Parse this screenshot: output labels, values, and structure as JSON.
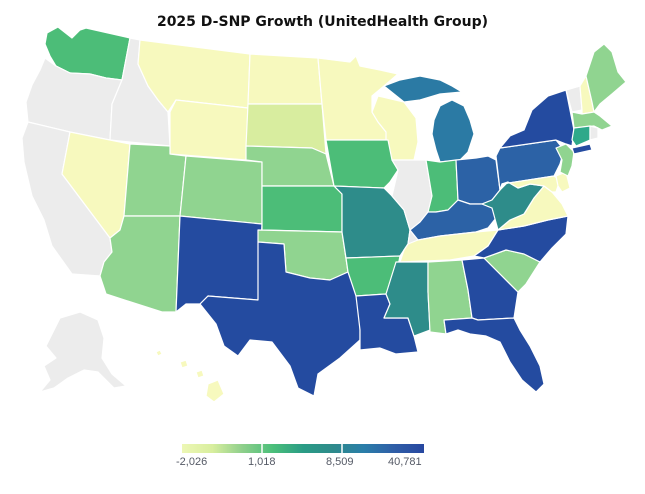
{
  "title": "2025 D-SNP Growth (UnitedHealth Group)",
  "legend": {
    "labels": [
      "-2,026",
      "1,018",
      "8,509",
      "40,781"
    ],
    "colors": [
      "#edf7b5",
      "#d8ee9e",
      "#8ecf8b",
      "#4bbf7a",
      "#2a9c85",
      "#2e8a8b",
      "#2a7ea9",
      "#2f5ea7",
      "#2747a0"
    ]
  },
  "colors": {
    "no_data": "#ececec",
    "c1": "#f7f9be",
    "c2": "#d8ed9f",
    "c3": "#90d490",
    "c4": "#4cbd78",
    "c5": "#2ea98a",
    "c6": "#2e8c8a",
    "c7": "#2b7aa4",
    "c8": "#2c62a6",
    "c9": "#244ba0"
  },
  "states": [
    {
      "id": "WA",
      "tier": "c4"
    },
    {
      "id": "OR",
      "tier": "no_data"
    },
    {
      "id": "CA",
      "tier": "no_data"
    },
    {
      "id": "ID",
      "tier": "no_data"
    },
    {
      "id": "NV",
      "tier": "c1"
    },
    {
      "id": "MT",
      "tier": "c1"
    },
    {
      "id": "WY",
      "tier": "c1"
    },
    {
      "id": "UT",
      "tier": "c3"
    },
    {
      "id": "AZ",
      "tier": "c3"
    },
    {
      "id": "CO",
      "tier": "c3"
    },
    {
      "id": "NM",
      "tier": "c9"
    },
    {
      "id": "ND",
      "tier": "c1"
    },
    {
      "id": "SD",
      "tier": "c2"
    },
    {
      "id": "NE",
      "tier": "c3"
    },
    {
      "id": "KS",
      "tier": "c4"
    },
    {
      "id": "OK",
      "tier": "c3"
    },
    {
      "id": "TX",
      "tier": "c9"
    },
    {
      "id": "MN",
      "tier": "c1"
    },
    {
      "id": "IA",
      "tier": "c4"
    },
    {
      "id": "MO",
      "tier": "c6"
    },
    {
      "id": "AR",
      "tier": "c4"
    },
    {
      "id": "LA",
      "tier": "c9"
    },
    {
      "id": "WI",
      "tier": "c1"
    },
    {
      "id": "IL",
      "tier": "no_data"
    },
    {
      "id": "MI",
      "tier": "c7"
    },
    {
      "id": "IN",
      "tier": "c4"
    },
    {
      "id": "OH",
      "tier": "c8"
    },
    {
      "id": "KY",
      "tier": "c8"
    },
    {
      "id": "TN",
      "tier": "c1"
    },
    {
      "id": "MS",
      "tier": "c6"
    },
    {
      "id": "AL",
      "tier": "c3"
    },
    {
      "id": "GA",
      "tier": "c9"
    },
    {
      "id": "FL",
      "tier": "c9"
    },
    {
      "id": "SC",
      "tier": "c3"
    },
    {
      "id": "NC",
      "tier": "c9"
    },
    {
      "id": "VA",
      "tier": "c1"
    },
    {
      "id": "WV",
      "tier": "c6"
    },
    {
      "id": "PA",
      "tier": "c8"
    },
    {
      "id": "NY",
      "tier": "c9"
    },
    {
      "id": "VT",
      "tier": "no_data"
    },
    {
      "id": "NH",
      "tier": "c1"
    },
    {
      "id": "ME",
      "tier": "c3"
    },
    {
      "id": "MA",
      "tier": "c3"
    },
    {
      "id": "CT",
      "tier": "c5"
    },
    {
      "id": "NJ",
      "tier": "c3"
    },
    {
      "id": "MD",
      "tier": "c1"
    },
    {
      "id": "DE",
      "tier": "c1"
    },
    {
      "id": "AK",
      "tier": "no_data"
    },
    {
      "id": "HI",
      "tier": "c1"
    }
  ]
}
